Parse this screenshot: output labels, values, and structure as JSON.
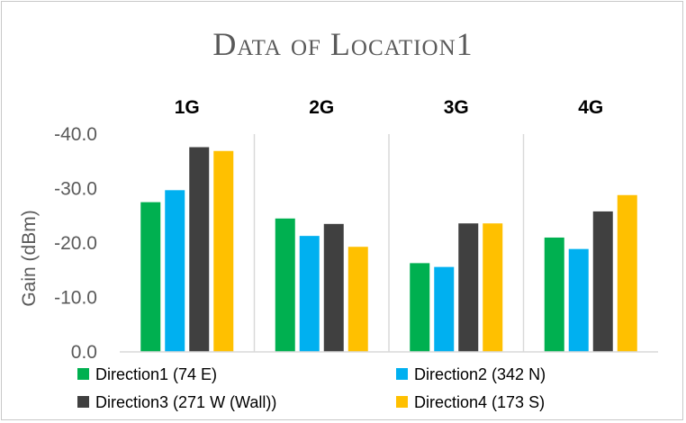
{
  "chart_data": {
    "type": "bar",
    "title": "Data of Location1",
    "ylabel": "Gain (dBm)",
    "xlabel": "",
    "categories": [
      "1G",
      "2G",
      "3G",
      "4G"
    ],
    "y_ticks": [
      "0.0",
      "-10.0",
      "-20.0",
      "-30.0",
      "-40.0"
    ],
    "y_tick_values": [
      0,
      -10,
      -20,
      -30,
      -40
    ],
    "ylim": [
      0,
      -40
    ],
    "grid": false,
    "legend_position": "bottom",
    "series": [
      {
        "name": "Direction1 (74 E)",
        "color": "#00b050",
        "values": [
          -27.5,
          -24.5,
          -16.3,
          -21.0
        ]
      },
      {
        "name": "Direction2 (342 N)",
        "color": "#00b0f0",
        "values": [
          -29.7,
          -21.3,
          -15.6,
          -18.9
        ]
      },
      {
        "name": "Direction3 (271 W (Wall))",
        "color": "#404040",
        "values": [
          -37.6,
          -23.5,
          -23.6,
          -25.8
        ]
      },
      {
        "name": "Direction4 (173 S)",
        "color": "#ffc000",
        "values": [
          -36.9,
          -19.3,
          -23.6,
          -28.8
        ]
      }
    ]
  }
}
